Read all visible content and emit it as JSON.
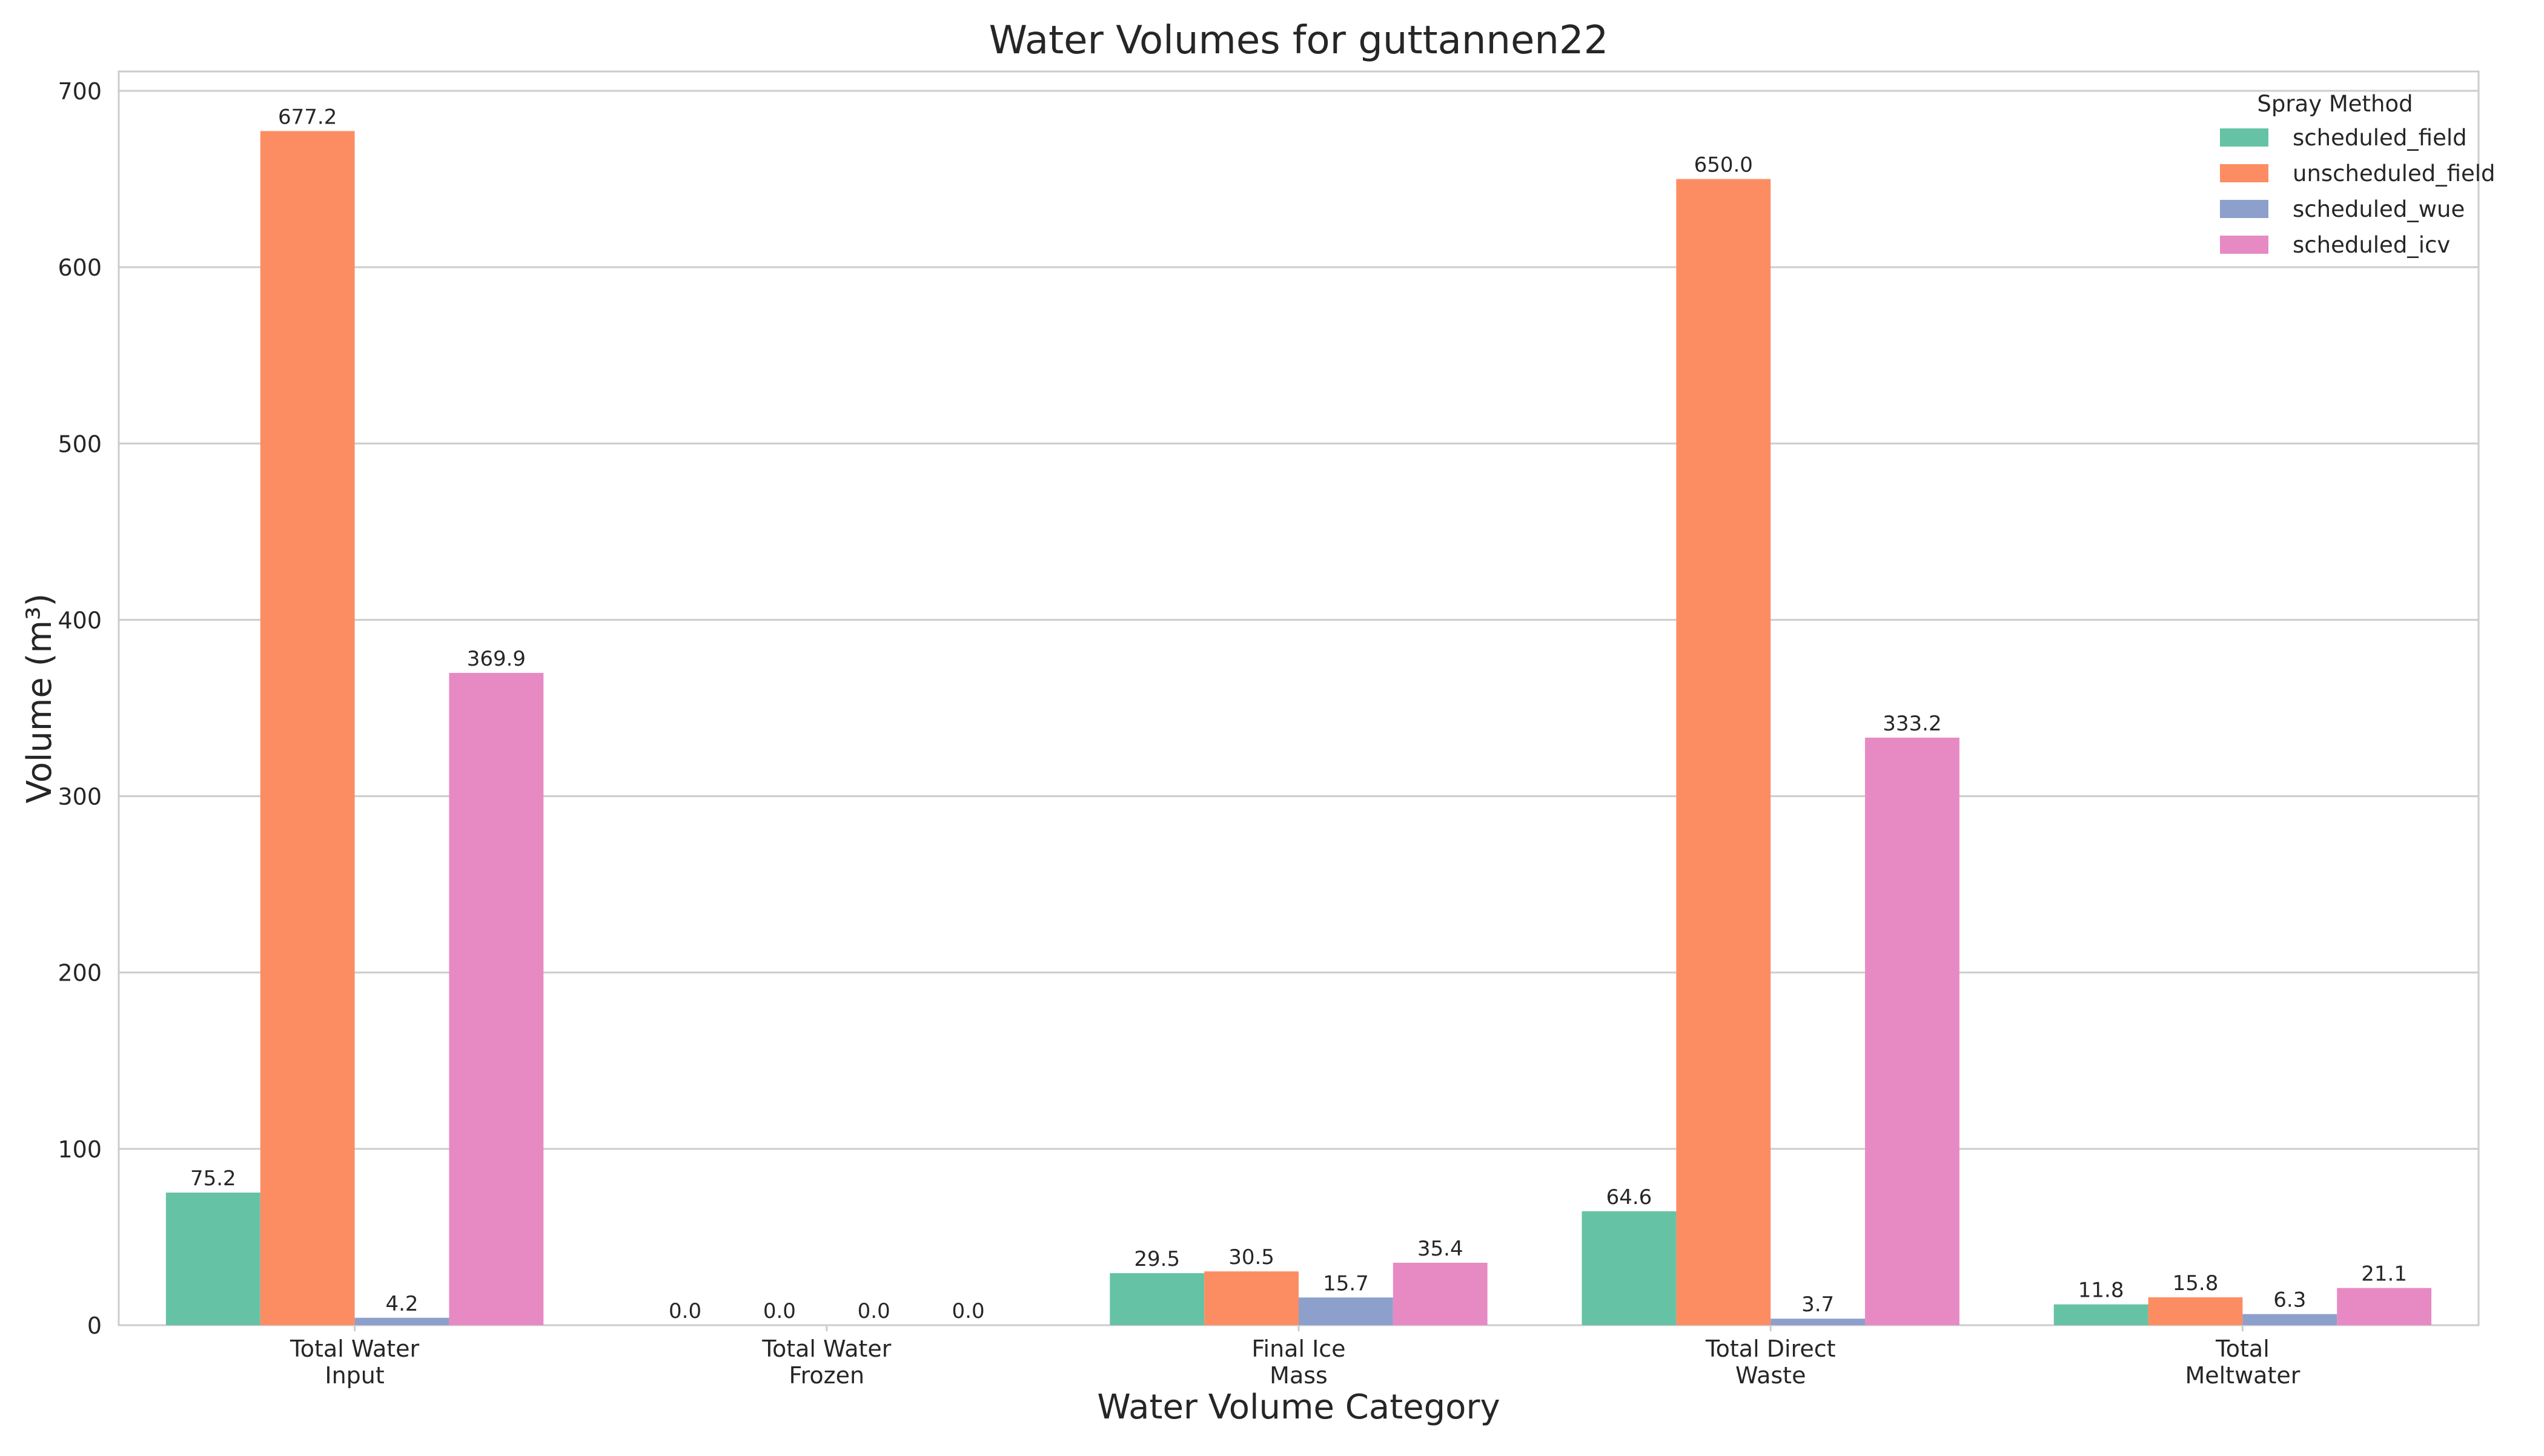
{
  "chart_data": {
    "type": "bar",
    "title": "Water Volumes for guttannen22",
    "xlabel": "Water Volume Category",
    "ylabel": "Volume (m³)",
    "ylim": [
      0,
      700
    ],
    "yticks": [
      0,
      100,
      200,
      300,
      400,
      500,
      600,
      700
    ],
    "grid": true,
    "legend_title": "Spray Method",
    "legend_position": "top-right",
    "categories": [
      [
        "Total Water",
        "Input"
      ],
      [
        "Total Water",
        "Frozen"
      ],
      [
        "Final Ice",
        "Mass"
      ],
      [
        "Total Direct",
        "Waste"
      ],
      [
        "Total",
        "Meltwater"
      ]
    ],
    "series": [
      {
        "name": "scheduled_field",
        "color": "#66c2a5",
        "values": [
          75.2,
          0.0,
          29.5,
          64.6,
          11.8
        ]
      },
      {
        "name": "unscheduled_field",
        "color": "#fc8d62",
        "values": [
          677.2,
          0.0,
          30.5,
          650.0,
          15.8
        ]
      },
      {
        "name": "scheduled_wue",
        "color": "#8da0cb",
        "values": [
          4.2,
          0.0,
          15.7,
          3.7,
          6.3
        ]
      },
      {
        "name": "scheduled_icv",
        "color": "#e78ac3",
        "values": [
          369.9,
          0.0,
          35.4,
          333.2,
          21.1
        ]
      }
    ]
  }
}
